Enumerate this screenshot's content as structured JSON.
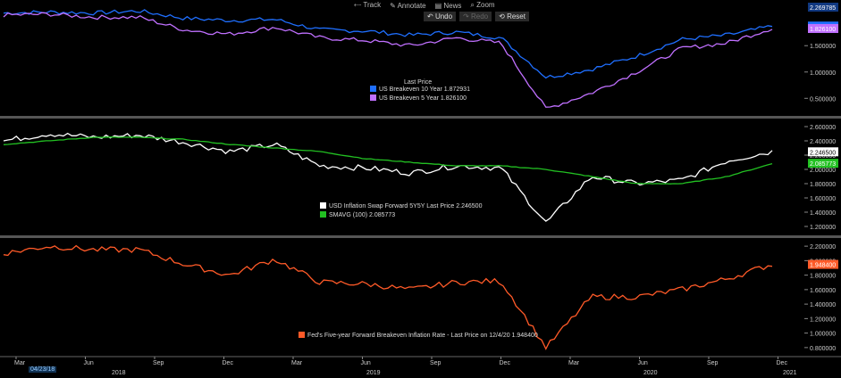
{
  "toolbar": {
    "track": "Track",
    "annotate": "Annotate",
    "news": "News",
    "zoom": "Zoom",
    "undo": "Undo",
    "redo": "Redo",
    "reset": "Reset"
  },
  "date_tag": "04/23/18",
  "colors": {
    "blue": "#1f6fff",
    "violet": "#c070ff",
    "white": "#ffffff",
    "green": "#22c022",
    "orange": "#ff5a28"
  },
  "chart_data": [
    {
      "type": "line",
      "legend_title": "Last Price",
      "ylim": [
        0.2,
        2.3
      ],
      "yticks": [
        "0.500000",
        "1.000000",
        "1.500000"
      ],
      "top_value_tag": "2.269785",
      "x": [
        "2018-04",
        "2018-06",
        "2018-08",
        "2018-10",
        "2018-12",
        "2019-02",
        "2019-04",
        "2019-06",
        "2019-08",
        "2019-10",
        "2019-12",
        "2020-02",
        "2020-03",
        "2020-04",
        "2020-06",
        "2020-08",
        "2020-10",
        "2020-12"
      ],
      "series": [
        {
          "name": "US Breakeven 10 Year",
          "last": "1.872931",
          "color": "#1f6fff",
          "values": [
            2.12,
            2.14,
            2.12,
            2.16,
            2.02,
            1.98,
            2.0,
            1.8,
            1.78,
            1.7,
            1.76,
            1.65,
            0.9,
            1.05,
            1.3,
            1.62,
            1.7,
            1.87
          ]
        },
        {
          "name": "US Breakeven 5 Year",
          "last": "1.826100",
          "color": "#c070ff",
          "values": [
            2.08,
            2.1,
            2.04,
            2.04,
            1.8,
            1.72,
            1.85,
            1.65,
            1.6,
            1.5,
            1.65,
            1.55,
            0.3,
            0.6,
            1.0,
            1.45,
            1.55,
            1.83
          ]
        }
      ]
    },
    {
      "type": "line",
      "ylim": [
        1.1,
        2.7
      ],
      "yticks": [
        "1.200000",
        "1.400000",
        "1.600000",
        "1.800000",
        "2.000000",
        "2.200000",
        "2.400000",
        "2.600000"
      ],
      "series": [
        {
          "name": "USD Inflation Swap Forward 5Y5Y",
          "last": "2.246500",
          "color": "#ffffff",
          "values": [
            2.4,
            2.5,
            2.45,
            2.48,
            2.38,
            2.25,
            2.35,
            2.05,
            2.02,
            1.95,
            2.05,
            2.02,
            1.25,
            1.9,
            1.8,
            1.85,
            2.12,
            2.25
          ]
        },
        {
          "name": "SMAVG (100)",
          "last": "2.085773",
          "color": "#22c022",
          "values": [
            2.35,
            2.4,
            2.45,
            2.45,
            2.42,
            2.35,
            2.3,
            2.25,
            2.15,
            2.1,
            2.05,
            2.05,
            2.0,
            1.9,
            1.8,
            1.8,
            1.9,
            2.08
          ]
        }
      ]
    },
    {
      "type": "line",
      "ylim": [
        0.7,
        2.3
      ],
      "yticks": [
        "0.800000",
        "1.000000",
        "1.200000",
        "1.400000",
        "1.600000",
        "1.800000",
        "2.000000",
        "2.200000"
      ],
      "series": [
        {
          "name": "Fed's Five-year Forward Breakeven Inflation Rate",
          "last_text": "Last Price on 12/4/20 1.948400",
          "last": "1.948400",
          "color": "#ff5a28",
          "values": [
            2.1,
            2.2,
            2.15,
            2.15,
            1.95,
            1.8,
            2.02,
            1.7,
            1.68,
            1.6,
            1.7,
            1.72,
            0.8,
            1.5,
            1.5,
            1.6,
            1.75,
            1.95
          ]
        }
      ]
    }
  ],
  "x_axis": {
    "months": [
      "Mar",
      "Jun",
      "Sep",
      "Dec",
      "Mar",
      "Jun",
      "Sep",
      "Dec",
      "Mar",
      "Jun",
      "Sep",
      "Dec"
    ],
    "years": [
      "2018",
      "2019",
      "2020",
      "2021"
    ]
  }
}
